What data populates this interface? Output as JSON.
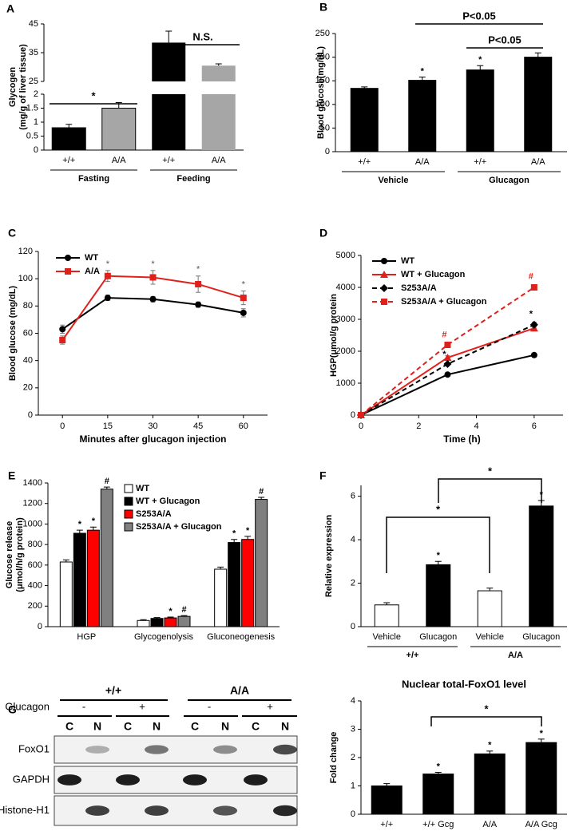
{
  "chart_data": [
    {
      "type": "bar",
      "panel": "A",
      "ylabel": [
        "Glycogen",
        "(mg/g of liver tissue)"
      ],
      "categories": [
        "+/+",
        "A/A",
        "+/+",
        "A/A"
      ],
      "groups": [
        "Fasting",
        "Feeding"
      ],
      "values": [
        0.8,
        1.5,
        38.5,
        30.5
      ],
      "errors": [
        0.12,
        0.2,
        4,
        0.6
      ],
      "colors": [
        "#000000",
        "#a6a6a6",
        "#000000",
        "#a6a6a6"
      ],
      "annotations": [
        "*",
        "N.S."
      ],
      "ylim": [
        0,
        45
      ],
      "ybreak": [
        2,
        25
      ],
      "yticks": [
        0,
        0.5,
        1,
        1.5,
        2,
        25,
        35,
        45
      ]
    },
    {
      "type": "bar",
      "panel": "B",
      "ylabel": "Blood glucose(mg/dL)",
      "categories": [
        "+/+",
        "A/A",
        "+/+",
        "A/A"
      ],
      "groups": [
        "Vehicle",
        "Glucagon"
      ],
      "values": [
        134,
        151,
        173,
        200
      ],
      "errors": [
        3,
        7,
        9,
        9
      ],
      "notes": [
        null,
        "*",
        "*",
        null
      ],
      "colors": [
        "#000000",
        "#000000",
        "#000000",
        "#000000"
      ],
      "annotations": [
        "P<0.05",
        "P<0.05"
      ],
      "ylim": [
        0,
        250
      ],
      "yticks": [
        0,
        50,
        100,
        150,
        200,
        250
      ]
    },
    {
      "type": "line",
      "panel": "C",
      "ylabel": "Blood glucose (mg/dL)",
      "xlabel": "Minutes after glucagon injection",
      "x": [
        0,
        15,
        30,
        45,
        60
      ],
      "notes": [
        null,
        "*",
        "*",
        "*",
        "*"
      ],
      "series": [
        {
          "name": "WT",
          "color": "#000000",
          "marker": "circle",
          "values": [
            63,
            86,
            85,
            81,
            75
          ],
          "errors": [
            3,
            2,
            2,
            2,
            3
          ]
        },
        {
          "name": "A/A",
          "color": "#e0201b",
          "marker": "square",
          "values": [
            55,
            102,
            101,
            96,
            86
          ],
          "errors": [
            3,
            4,
            5,
            6,
            5
          ]
        }
      ],
      "xlim": [
        -8,
        68
      ],
      "xticks": [
        0,
        15,
        30,
        45,
        60
      ],
      "ylim": [
        0,
        120
      ],
      "yticks": [
        0,
        20,
        40,
        60,
        80,
        100,
        120
      ]
    },
    {
      "type": "line",
      "panel": "D",
      "ylabel": "HGP(μmol/g protein",
      "xlabel": "Time (h)",
      "x": [
        0,
        3,
        6
      ],
      "series": [
        {
          "name": "WT",
          "color": "#000000",
          "marker": "circle",
          "values": [
            0,
            1270,
            1880
          ],
          "errors": [
            0,
            40,
            50
          ]
        },
        {
          "name": "WT + Glucagon",
          "color": "#e0201b",
          "marker": "triangle",
          "values": [
            0,
            1800,
            2720
          ],
          "errors": [
            0,
            60,
            70
          ]
        },
        {
          "name": "S253A/A",
          "color": "#000000",
          "marker": "diamond",
          "dash": true,
          "values": [
            0,
            1600,
            2830
          ],
          "errors": [
            0,
            50,
            80
          ],
          "notes": [
            null,
            "*",
            "*"
          ]
        },
        {
          "name": "S253A/A + Glucagon",
          "color": "#e0201b",
          "marker": "square",
          "dash": true,
          "values": [
            0,
            2200,
            4000
          ],
          "errors": [
            0,
            60,
            80
          ],
          "notes": [
            null,
            "#",
            "#"
          ]
        }
      ],
      "xlim": [
        0,
        7
      ],
      "xticks": [
        0,
        2,
        4,
        6
      ],
      "ylim": [
        0,
        5000
      ],
      "yticks": [
        0,
        1000,
        2000,
        3000,
        4000,
        5000
      ]
    },
    {
      "type": "bar",
      "panel": "E",
      "ylabel": [
        "Glucose release",
        "(μmol/h/g protein)"
      ],
      "categories": [
        "HGP",
        "Glycogenolysis",
        "Gluconeogenesis"
      ],
      "series": [
        {
          "name": "WT",
          "color": "#ffffff",
          "values": [
            630,
            60,
            560
          ],
          "errors": [
            20,
            8,
            20
          ]
        },
        {
          "name": "WT + Glucagon",
          "color": "#000000",
          "values": [
            910,
            80,
            820
          ],
          "errors": [
            30,
            8,
            30
          ],
          "notes": [
            "*",
            null,
            "*"
          ]
        },
        {
          "name": "S253A/A",
          "color": "#ff0000",
          "values": [
            940,
            85,
            850
          ],
          "errors": [
            30,
            8,
            30
          ],
          "notes": [
            "*",
            "*",
            "*"
          ]
        },
        {
          "name": "S253A/A + Glucagon",
          "color": "#808080",
          "values": [
            1340,
            100,
            1240
          ],
          "errors": [
            20,
            8,
            20
          ],
          "notes": [
            "#",
            "#",
            "#"
          ]
        }
      ],
      "ylim": [
        0,
        1400
      ],
      "yticks": [
        0,
        200,
        400,
        600,
        800,
        1000,
        1200,
        1400
      ]
    },
    {
      "type": "bar",
      "panel": "F",
      "ylabel": "Relative expression",
      "categories": [
        "Vehicle",
        "Glucagon",
        "Vehicle",
        "Glucagon"
      ],
      "groups": [
        "+/+",
        "A/A"
      ],
      "values": [
        1.0,
        2.85,
        1.65,
        5.55
      ],
      "errors": [
        0.1,
        0.15,
        0.12,
        0.25
      ],
      "notes": [
        null,
        "*",
        null,
        "*"
      ],
      "colors": [
        "#ffffff",
        "#000000",
        "#ffffff",
        "#000000"
      ],
      "annotations": [
        "*",
        "*"
      ],
      "ylim": [
        0,
        6.5
      ],
      "yticks": [
        0,
        2,
        4,
        6
      ]
    },
    {
      "type": "bar",
      "panel": "G",
      "title": "Nuclear total-FoxO1 level",
      "ylabel": "Fold change",
      "categories": [
        "+/+",
        "+/+ Gcg",
        "A/A",
        "A/A Gcg"
      ],
      "values": [
        1.0,
        1.42,
        2.13,
        2.53
      ],
      "errors": [
        0.08,
        0.06,
        0.1,
        0.12
      ],
      "notes": [
        null,
        "*",
        "*",
        "*"
      ],
      "colors": [
        "#000000",
        "#000000",
        "#000000",
        "#000000"
      ],
      "annotations": [
        "*"
      ],
      "ylim": [
        0,
        4
      ],
      "yticks": [
        0,
        1,
        2,
        3,
        4
      ]
    }
  ],
  "blot": {
    "genotypes": [
      "+/+",
      "A/A"
    ],
    "treatment_label": "Glucagon",
    "treatments": [
      "-",
      "+",
      "-",
      "+"
    ],
    "fractions": [
      "C",
      "N",
      "C",
      "N",
      "C",
      "N",
      "C",
      "N"
    ],
    "rows": [
      "FoxO1",
      "GAPDH",
      "Histone-H1"
    ]
  }
}
